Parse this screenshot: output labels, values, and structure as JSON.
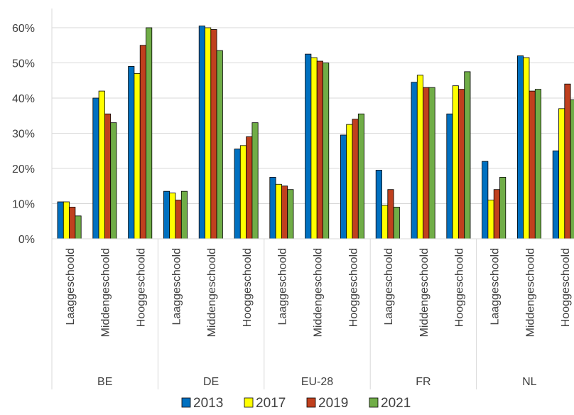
{
  "chart_data": {
    "type": "bar",
    "title": "",
    "xlabel": "",
    "ylabel": "",
    "ylim": [
      0,
      65
    ],
    "y_ticks": [
      {
        "value": 0,
        "label": "0%"
      },
      {
        "value": 10,
        "label": "10%"
      },
      {
        "value": 20,
        "label": "20%"
      },
      {
        "value": 30,
        "label": "30%"
      },
      {
        "value": 40,
        "label": "40%"
      },
      {
        "value": 50,
        "label": "50%"
      },
      {
        "value": 60,
        "label": "60%"
      }
    ],
    "grid": true,
    "legend_position": "bottom",
    "groups": [
      "BE",
      "DE",
      "EU-28",
      "FR",
      "NL"
    ],
    "subcategories": [
      "Laaggeschoold",
      "Middengeschoold",
      "Hooggeschoold"
    ],
    "categories": [
      "BE Laaggeschoold",
      "BE Middengeschoold",
      "BE Hooggeschoold",
      "DE Laaggeschoold",
      "DE Middengeschoold",
      "DE Hooggeschoold",
      "EU-28 Laaggeschoold",
      "EU-28 Middengeschoold",
      "EU-28 Hooggeschoold",
      "FR Laaggeschoold",
      "FR Middengeschoold",
      "FR Hooggeschoold",
      "NL Laaggeschoold",
      "NL Middengeschoold",
      "NL Hooggeschoold"
    ],
    "series": [
      {
        "name": "2013",
        "color": "#0070C0",
        "values": [
          10.5,
          40,
          49,
          13.5,
          60.5,
          25.5,
          17.5,
          52.5,
          29.5,
          19.5,
          44.5,
          35.5,
          22,
          52,
          25
        ]
      },
      {
        "name": "2017",
        "color": "#FFFF00",
        "values": [
          10.5,
          42,
          47,
          13,
          60,
          26.5,
          15.5,
          51.5,
          32.5,
          9.5,
          46.5,
          43.5,
          11,
          51.5,
          37
        ]
      },
      {
        "name": "2019",
        "color": "#C0401E",
        "values": [
          9,
          35.5,
          55,
          11,
          59.5,
          29,
          15,
          50.5,
          34,
          14,
          43,
          42.5,
          14,
          42,
          44
        ]
      },
      {
        "name": "2021",
        "color": "#70AD47",
        "values": [
          6.5,
          33,
          60,
          13.5,
          53.5,
          33,
          14,
          50,
          35.5,
          9,
          43,
          47.5,
          17.5,
          42.5,
          39.5
        ]
      }
    ]
  }
}
